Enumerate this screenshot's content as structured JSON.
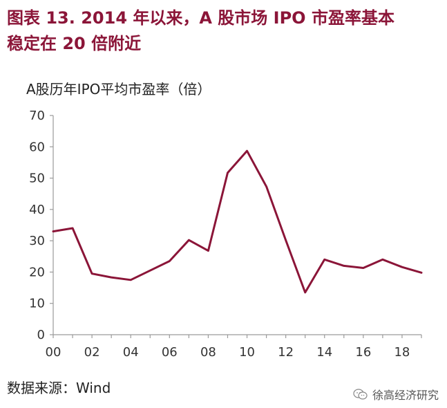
{
  "title": {
    "line1": "图表 13.  2014 年以来，A 股市场 IPO 市盈率基本",
    "line2": "稳定在 20 倍附近"
  },
  "source": "数据来源：Wind",
  "watermark": "徐高经济研究",
  "colors": {
    "title": "#8B1538",
    "series": "#8B1538",
    "axis": "#9a9a9a"
  },
  "chart_data": {
    "type": "line",
    "title": "A股历年IPO平均市盈率（倍）",
    "xlabel": "",
    "ylabel": "",
    "x": [
      "00",
      "01",
      "02",
      "03",
      "04",
      "05",
      "06",
      "07",
      "08",
      "09",
      "10",
      "11",
      "12",
      "13",
      "14",
      "15",
      "16",
      "17",
      "18",
      "19"
    ],
    "x_tick_labels": [
      "00",
      "02",
      "04",
      "06",
      "08",
      "10",
      "12",
      "14",
      "16",
      "18"
    ],
    "ylim": [
      0,
      70
    ],
    "y_ticks": [
      0,
      10,
      20,
      30,
      40,
      50,
      60,
      70
    ],
    "grid": false,
    "legend": "none",
    "series": [
      {
        "values": [
          33,
          34,
          19.5,
          18.3,
          17.5,
          20.5,
          23.5,
          30.2,
          26.8,
          51.7,
          58.7,
          47.3,
          30.2,
          13.5,
          24,
          22,
          21.3,
          24,
          21.6,
          19.8
        ]
      }
    ]
  }
}
